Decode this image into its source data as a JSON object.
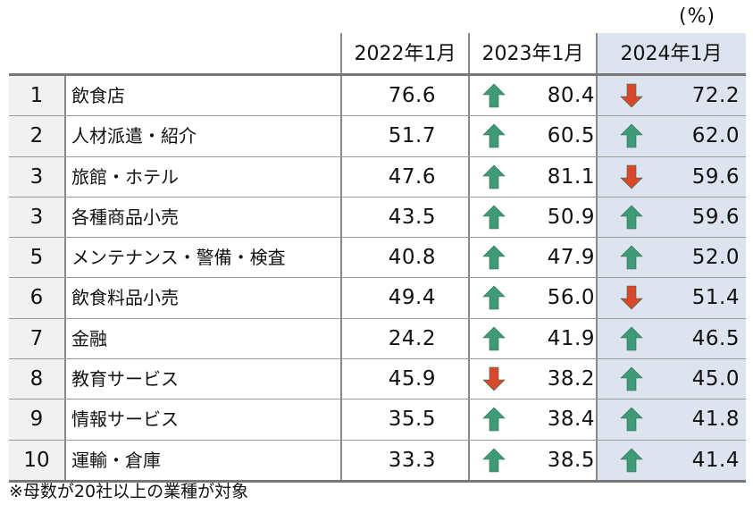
{
  "unit_label": "(%)",
  "headers": [
    "2022年1月",
    "2023年1月",
    "2024年1月"
  ],
  "rows": [
    {
      "rank": "1",
      "industry": "飲食店",
      "v2022": "76.6",
      "v2023": "80.4",
      "t2023": "up",
      "v2024": "72.2",
      "t2024": "down"
    },
    {
      "rank": "2",
      "industry": "人材派遣・紹介",
      "v2022": "51.7",
      "v2023": "60.5",
      "t2023": "up",
      "v2024": "62.0",
      "t2024": "up"
    },
    {
      "rank": "3",
      "industry": "旅館・ホテル",
      "v2022": "47.6",
      "v2023": "81.1",
      "t2023": "up",
      "v2024": "59.6",
      "t2024": "down"
    },
    {
      "rank": "3",
      "industry": "各種商品小売",
      "v2022": "43.5",
      "v2023": "50.9",
      "t2023": "up",
      "v2024": "59.6",
      "t2024": "up"
    },
    {
      "rank": "5",
      "industry": "メンテナンス・警備・検査",
      "v2022": "40.8",
      "v2023": "47.9",
      "t2023": "up",
      "v2024": "52.0",
      "t2024": "up"
    },
    {
      "rank": "6",
      "industry": "飲食料品小売",
      "v2022": "49.4",
      "v2023": "56.0",
      "t2023": "up",
      "v2024": "51.4",
      "t2024": "down"
    },
    {
      "rank": "7",
      "industry": "金融",
      "v2022": "24.2",
      "v2023": "41.9",
      "t2023": "up",
      "v2024": "46.5",
      "t2024": "up"
    },
    {
      "rank": "8",
      "industry": "教育サービス",
      "v2022": "45.9",
      "v2023": "38.2",
      "t2023": "down",
      "v2024": "45.0",
      "t2024": "up"
    },
    {
      "rank": "9",
      "industry": "情報サービス",
      "v2022": "35.5",
      "v2023": "38.4",
      "t2023": "up",
      "v2024": "41.8",
      "t2024": "up"
    },
    {
      "rank": "10",
      "industry": "運輸・倉庫",
      "v2022": "33.3",
      "v2023": "38.5",
      "t2023": "up",
      "v2024": "41.4",
      "t2024": "up"
    }
  ],
  "colors": {
    "up_arrow": "#3f9a78",
    "down_arrow": "#d9482b",
    "highlight_column": "#dde4ef"
  },
  "footnote": "※母数が20社以上の業種が対象"
}
